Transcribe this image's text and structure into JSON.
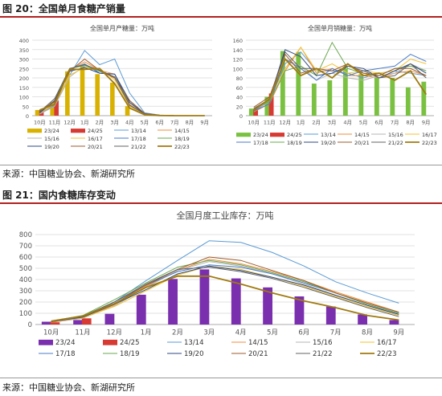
{
  "figure20": {
    "title": "图 20：全国单月食糖产销量",
    "source": "来源：中国糖业协会、新湖研究所"
  },
  "figure21": {
    "title": "图 21：国内食糖库存变动",
    "source": "来源：中国糖业协会、新湖研究所"
  },
  "legend_colors": {
    "23/24": "#7a2fae",
    "24/25": "#d63a32",
    "13/14": "#5b9bd5",
    "14/15": "#ed8e3e",
    "15/16": "#b4b4b4",
    "16/17": "#f2c232",
    "17/18": "#4a7bc8",
    "18/19": "#6aa84f",
    "19/20": "#2e4880",
    "20/21": "#9c5a2b",
    "21/22": "#636363",
    "22/23": "#a07a10"
  },
  "chart_data": [
    {
      "type": "bar",
      "title": "全国单月产糖量：万吨",
      "categories": [
        "10月",
        "11月",
        "12月",
        "1月",
        "2月",
        "3月",
        "4月",
        "5月",
        "6月",
        "7月",
        "8月",
        "9月"
      ],
      "ylim": [
        0,
        400
      ],
      "yticks": [
        0,
        50,
        100,
        150,
        200,
        250,
        300,
        350,
        400
      ],
      "grid": true,
      "legend_position": "bottom",
      "bar_series": [
        {
          "name": "23/24",
          "color": "#d9b100",
          "values": [
            30,
            70,
            235,
            265,
            220,
            175,
            50,
            0,
            0,
            0,
            0,
            0
          ]
        },
        {
          "name": "24/25",
          "color": "#d63a32",
          "values": [
            30,
            80,
            null,
            null,
            null,
            null,
            null,
            null,
            null,
            null,
            null,
            null
          ]
        }
      ],
      "line_series": [
        {
          "name": "13/14",
          "color": "#5b9bd5",
          "values": [
            10,
            55,
            215,
            345,
            270,
            300,
            120,
            15,
            3,
            0,
            0,
            0
          ]
        },
        {
          "name": "14/15",
          "color": "#ed8e3e",
          "values": [
            12,
            60,
            240,
            285,
            240,
            220,
            60,
            8,
            2,
            0,
            0,
            0
          ]
        },
        {
          "name": "15/16",
          "color": "#b4b4b4",
          "values": [
            8,
            50,
            205,
            265,
            235,
            200,
            55,
            8,
            1,
            0,
            0,
            0
          ]
        },
        {
          "name": "16/17",
          "color": "#f2c232",
          "values": [
            15,
            60,
            215,
            255,
            250,
            190,
            50,
            6,
            1,
            0,
            0,
            0
          ]
        },
        {
          "name": "17/18",
          "color": "#4a7bc8",
          "values": [
            15,
            75,
            245,
            275,
            225,
            220,
            80,
            10,
            2,
            0,
            0,
            0
          ]
        },
        {
          "name": "18/19",
          "color": "#6aa84f",
          "values": [
            18,
            80,
            250,
            265,
            235,
            205,
            70,
            10,
            2,
            0,
            0,
            0
          ]
        },
        {
          "name": "19/20",
          "color": "#2e4880",
          "values": [
            15,
            80,
            235,
            255,
            225,
            220,
            70,
            10,
            2,
            0,
            0,
            0
          ]
        },
        {
          "name": "20/21",
          "color": "#9c5a2b",
          "values": [
            25,
            75,
            235,
            300,
            240,
            200,
            80,
            12,
            2,
            0,
            0,
            0
          ]
        },
        {
          "name": "21/22",
          "color": "#636363",
          "values": [
            20,
            90,
            250,
            270,
            240,
            205,
            55,
            10,
            2,
            0,
            0,
            0
          ]
        },
        {
          "name": "22/23",
          "color": "#a07a10",
          "values": [
            30,
            60,
            245,
            245,
            250,
            170,
            40,
            5,
            1,
            0,
            0,
            0
          ]
        }
      ]
    },
    {
      "type": "bar",
      "title": "全国单月销糖量：万吨",
      "categories": [
        "10月",
        "11月",
        "12月",
        "1月",
        "2月",
        "3月",
        "4月",
        "5月",
        "6月",
        "7月",
        "8月",
        "9月"
      ],
      "ylim": [
        0,
        160
      ],
      "yticks": [
        0,
        20,
        40,
        60,
        80,
        100,
        120,
        140,
        160
      ],
      "grid": true,
      "legend_position": "bottom",
      "bar_series": [
        {
          "name": "23/24",
          "color": "#7ac142",
          "values": [
            15,
            40,
            137,
            135,
            68,
            75,
            100,
            88,
            80,
            80,
            60,
            72
          ]
        },
        {
          "name": "24/25",
          "color": "#d63a32",
          "values": [
            14,
            47,
            null,
            null,
            null,
            null,
            null,
            null,
            null,
            null,
            null,
            null
          ]
        }
      ],
      "line_series": [
        {
          "name": "13/14",
          "color": "#5b9bd5",
          "values": [
            10,
            30,
            110,
            135,
            95,
            95,
            90,
            80,
            90,
            95,
            90,
            85
          ]
        },
        {
          "name": "14/15",
          "color": "#ed8e3e",
          "values": [
            8,
            25,
            95,
            145,
            90,
            100,
            85,
            85,
            80,
            90,
            95,
            85
          ]
        },
        {
          "name": "15/16",
          "color": "#b4b4b4",
          "values": [
            12,
            30,
            120,
            105,
            75,
            90,
            80,
            75,
            85,
            90,
            110,
            95
          ]
        },
        {
          "name": "16/17",
          "color": "#f2c232",
          "values": [
            15,
            35,
            100,
            145,
            95,
            110,
            90,
            95,
            90,
            95,
            120,
            110
          ]
        },
        {
          "name": "17/18",
          "color": "#4a7bc8",
          "values": [
            10,
            25,
            120,
            100,
            75,
            100,
            85,
            95,
            100,
            105,
            130,
            115
          ]
        },
        {
          "name": "18/19",
          "color": "#6aa84f",
          "values": [
            15,
            30,
            95,
            105,
            85,
            155,
            100,
            90,
            85,
            100,
            105,
            95
          ]
        },
        {
          "name": "19/20",
          "color": "#2e4880",
          "values": [
            12,
            35,
            140,
            125,
            85,
            90,
            105,
            100,
            80,
            95,
            110,
            90
          ]
        },
        {
          "name": "20/21",
          "color": "#9c5a2b",
          "values": [
            18,
            40,
            130,
            90,
            100,
            95,
            110,
            90,
            85,
            100,
            100,
            85
          ]
        },
        {
          "name": "21/22",
          "color": "#636363",
          "values": [
            15,
            35,
            135,
            100,
            100,
            80,
            105,
            95,
            80,
            85,
            110,
            80
          ]
        },
        {
          "name": "22/23",
          "color": "#a07a10",
          "values": [
            12,
            35,
            120,
            85,
            100,
            80,
            110,
            85,
            90,
            75,
            95,
            45
          ]
        }
      ]
    },
    {
      "type": "bar",
      "title": "全国月度工业库存：万吨",
      "categories": [
        "10月",
        "11月",
        "12月",
        "1月",
        "2月",
        "3月",
        "4月",
        "5月",
        "6月",
        "7月",
        "8月",
        "9月"
      ],
      "ylim": [
        0,
        800
      ],
      "yticks": [
        0,
        100,
        200,
        300,
        400,
        500,
        600,
        700,
        800
      ],
      "grid": true,
      "legend_position": "bottom",
      "bar_series": [
        {
          "name": "23/24",
          "color": "#7a2fae",
          "values": [
            25,
            40,
            95,
            265,
            405,
            490,
            410,
            330,
            250,
            160,
            90,
            40
          ]
        },
        {
          "name": "24/25",
          "color": "#d63a32",
          "values": [
            20,
            55,
            null,
            null,
            null,
            null,
            null,
            null,
            null,
            null,
            null,
            null
          ]
        }
      ],
      "line_series": [
        {
          "name": "13/14",
          "color": "#5b9bd5",
          "values": [
            25,
            60,
            200,
            390,
            570,
            745,
            730,
            640,
            520,
            380,
            280,
            190
          ]
        },
        {
          "name": "14/15",
          "color": "#ed8e3e",
          "values": [
            20,
            55,
            175,
            340,
            480,
            580,
            540,
            470,
            390,
            290,
            200,
            110
          ]
        },
        {
          "name": "15/16",
          "color": "#b4b4b4",
          "values": [
            25,
            55,
            165,
            330,
            480,
            560,
            520,
            450,
            360,
            260,
            170,
            80
          ]
        },
        {
          "name": "16/17",
          "color": "#f2c232",
          "values": [
            30,
            60,
            160,
            300,
            440,
            520,
            490,
            420,
            340,
            250,
            160,
            80
          ]
        },
        {
          "name": "17/18",
          "color": "#4a7bc8",
          "values": [
            25,
            75,
            200,
            350,
            470,
            530,
            510,
            450,
            370,
            280,
            180,
            100
          ]
        },
        {
          "name": "18/19",
          "color": "#6aa84f",
          "values": [
            30,
            80,
            220,
            370,
            510,
            570,
            530,
            460,
            380,
            280,
            180,
            100
          ]
        },
        {
          "name": "19/20",
          "color": "#2e4880",
          "values": [
            25,
            65,
            180,
            310,
            450,
            520,
            480,
            420,
            350,
            260,
            170,
            90
          ]
        },
        {
          "name": "20/21",
          "color": "#9c5a2b",
          "values": [
            30,
            70,
            185,
            350,
            490,
            600,
            570,
            480,
            390,
            280,
            190,
            110
          ]
        },
        {
          "name": "21/22",
          "color": "#636363",
          "values": [
            25,
            75,
            200,
            360,
            490,
            510,
            470,
            410,
            330,
            240,
            150,
            70
          ]
        },
        {
          "name": "22/23",
          "color": "#a07a10",
          "values": [
            30,
            75,
            185,
            330,
            430,
            430,
            360,
            280,
            210,
            150,
            80,
            40
          ]
        }
      ]
    }
  ]
}
